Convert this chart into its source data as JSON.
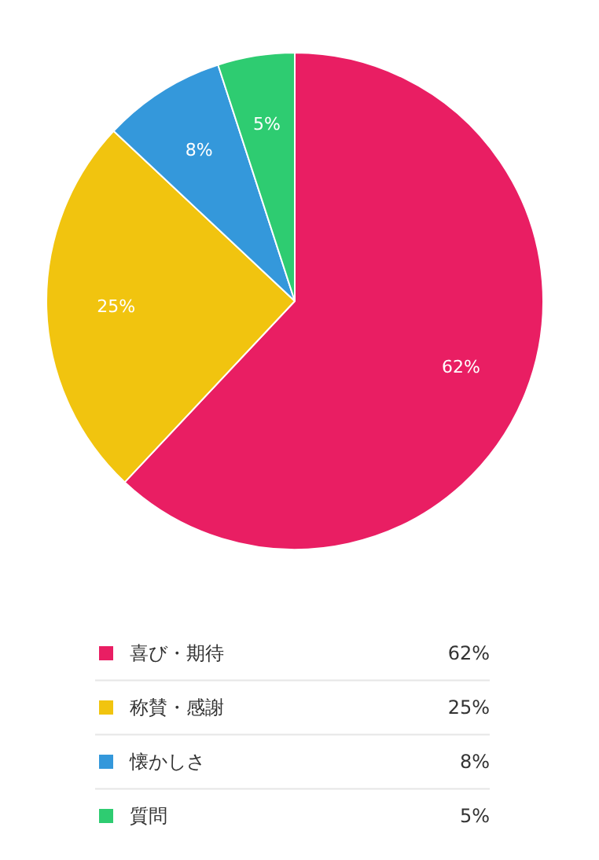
{
  "chart_data": {
    "type": "pie",
    "categories": [
      "喜び・期待",
      "称賛・感謝",
      "懐かしさ",
      "質問"
    ],
    "values": [
      62,
      25,
      8,
      5
    ],
    "colors": [
      "#e91e63",
      "#f1c40f",
      "#3498db",
      "#2ecc71"
    ],
    "value_labels": [
      "62%",
      "25%",
      "8%",
      "5%"
    ],
    "legend": "bottom"
  }
}
